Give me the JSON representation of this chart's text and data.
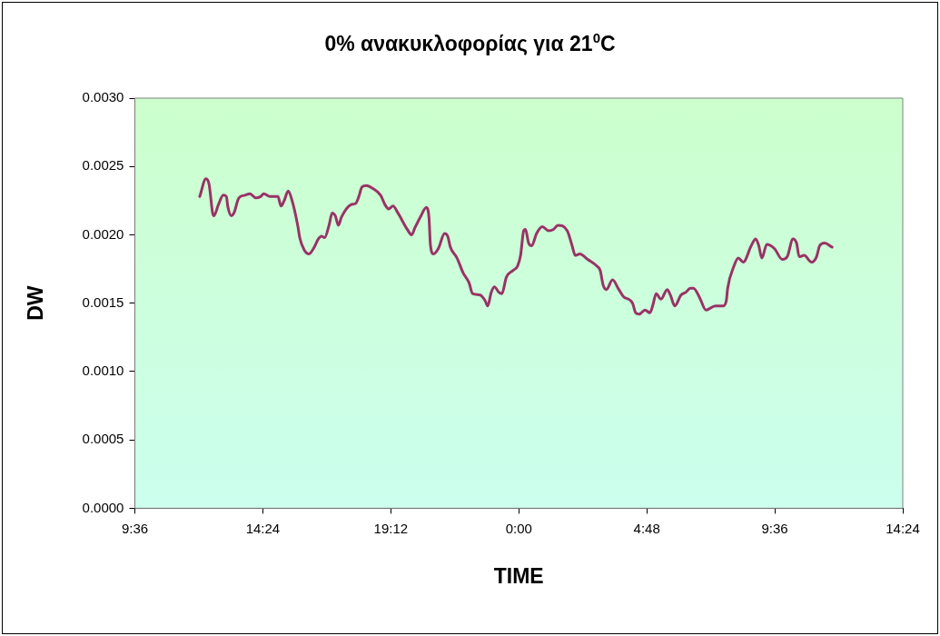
{
  "chart_data": {
    "type": "line",
    "title": "0% ανακυκλοφορίας για 21$^{0}$C",
    "xlabel": "TIME",
    "ylabel": "DW",
    "x": [
      "2000-01-01T12:02",
      "2000-01-01T12:16",
      "2000-01-01T12:23",
      "2000-01-01T12:31",
      "2000-01-01T12:34",
      "2000-01-01T12:44",
      "2000-01-01T12:55",
      "2000-01-01T13:02",
      "2000-01-01T13:05",
      "2000-01-01T13:13",
      "2000-01-01T13:19",
      "2000-01-01T13:30",
      "2000-01-01T13:44",
      "2000-01-01T13:55",
      "2000-01-01T14:08",
      "2000-01-01T14:19",
      "2000-01-01T14:26",
      "2000-01-01T14:40",
      "2000-01-01T14:58",
      "2000-01-01T15:05",
      "2000-01-01T15:12",
      "2000-01-01T15:21",
      "2000-01-01T15:29",
      "2000-01-01T15:43",
      "2000-01-01T15:47",
      "2000-01-01T15:57",
      "2000-01-01T16:08",
      "2000-01-01T16:18",
      "2000-01-01T16:29",
      "2000-01-01T16:36",
      "2000-01-01T16:43",
      "2000-01-01T16:53",
      "2000-01-01T17:00",
      "2000-01-01T17:07",
      "2000-01-01T17:14",
      "2000-01-01T17:21",
      "2000-01-01T17:42",
      "2000-01-01T17:53",
      "2000-01-01T18:00",
      "2000-01-01T18:07",
      "2000-01-01T18:17",
      "2000-01-01T18:31",
      "2000-01-01T18:49",
      "2000-01-01T18:59",
      "2000-01-01T19:07",
      "2000-01-01T19:17",
      "2000-01-01T19:28",
      "2000-01-01T19:49",
      "2000-01-01T19:59",
      "2000-01-01T20:06",
      "2000-01-01T20:20",
      "2000-01-01T20:32",
      "2000-01-01T20:38",
      "2000-01-01T20:41",
      "2000-01-01T20:48",
      "2000-01-01T20:59",
      "2000-01-01T21:13",
      "2000-01-01T21:20",
      "2000-01-01T21:26",
      "2000-01-01T21:41",
      "2000-01-01T21:55",
      "2000-01-01T22:08",
      "2000-01-01T22:16",
      "2000-01-01T22:33",
      "2000-01-01T22:44",
      "2000-01-01T22:50",
      "2000-01-01T22:58",
      "2000-01-01T23:05",
      "2000-01-01T23:15",
      "2000-01-01T23:22",
      "2000-01-01T23:32",
      "2000-01-01T23:47",
      "2000-01-01T23:57",
      "2000-01-02T00:04",
      "2000-01-02T00:11",
      "2000-01-02T00:15",
      "2000-01-02T00:22",
      "2000-01-02T00:29",
      "2000-01-02T00:40",
      "2000-01-02T00:53",
      "2000-01-02T01:07",
      "2000-01-02T01:18",
      "2000-01-02T01:28",
      "2000-01-02T01:49",
      "2000-01-02T02:00",
      "2000-01-02T02:07",
      "2000-01-02T02:17",
      "2000-01-02T02:35",
      "2000-01-02T02:56",
      "2000-01-02T03:03",
      "2000-01-02T03:10",
      "2000-01-02T03:17",
      "2000-01-02T03:31",
      "2000-01-02T03:45",
      "2000-01-02T03:55",
      "2000-01-02T04:16",
      "2000-01-02T04:23",
      "2000-01-02T04:31",
      "2000-01-02T04:44",
      "2000-01-02T04:55",
      "2000-01-02T05:02",
      "2000-01-02T05:09",
      "2000-01-02T05:20",
      "2000-01-02T05:34",
      "2000-01-02T05:41",
      "2000-01-02T05:51",
      "2000-01-02T06:05",
      "2000-01-02T06:16",
      "2000-01-02T06:26",
      "2000-01-02T06:33",
      "2000-01-02T06:47",
      "2000-01-02T07:01",
      "2000-01-02T07:22",
      "2000-01-02T07:40",
      "2000-01-02T07:47",
      "2000-01-02T07:50",
      "2000-01-02T08:04",
      "2000-01-02T08:14",
      "2000-01-02T08:25",
      "2000-01-02T08:43",
      "2000-01-02T08:53",
      "2000-01-02T09:00",
      "2000-01-02T09:07",
      "2000-01-02T09:18",
      "2000-01-02T09:35",
      "2000-01-02T09:53",
      "2000-01-02T10:04",
      "2000-01-02T10:17",
      "2000-01-02T10:25",
      "2000-01-02T10:31",
      "2000-01-02T10:42",
      "2000-01-02T10:59",
      "2000-01-02T11:10",
      "2000-01-02T11:17",
      "2000-01-02T11:28",
      "2000-01-02T11:45"
    ],
    "series": [
      {
        "color": "#993366",
        "values": [
          0.00228,
          0.00241,
          0.00237,
          0.00216,
          0.00214,
          0.00222,
          0.00229,
          0.00228,
          0.00221,
          0.00214,
          0.00216,
          0.00227,
          0.00229,
          0.0023,
          0.00227,
          0.00228,
          0.0023,
          0.00228,
          0.00228,
          0.00221,
          0.00225,
          0.00232,
          0.00226,
          0.00206,
          0.00198,
          0.00189,
          0.00186,
          0.0019,
          0.00197,
          0.00199,
          0.00198,
          0.00207,
          0.00216,
          0.00214,
          0.00207,
          0.00213,
          0.00222,
          0.00223,
          0.00228,
          0.00235,
          0.00236,
          0.00234,
          0.00229,
          0.00222,
          0.00219,
          0.00221,
          0.00216,
          0.00204,
          0.002,
          0.00205,
          0.00214,
          0.0022,
          0.00212,
          0.00193,
          0.00186,
          0.0019,
          0.00201,
          0.00199,
          0.00191,
          0.00183,
          0.00172,
          0.00165,
          0.00157,
          0.00156,
          0.00152,
          0.00148,
          0.00158,
          0.00162,
          0.00158,
          0.00157,
          0.00169,
          0.00174,
          0.00177,
          0.00185,
          0.00203,
          0.00204,
          0.00194,
          0.00192,
          0.00201,
          0.00206,
          0.00203,
          0.00204,
          0.00207,
          0.00203,
          0.00192,
          0.00185,
          0.00186,
          0.00182,
          0.00177,
          0.00174,
          0.00163,
          0.0016,
          0.00167,
          0.0016,
          0.00155,
          0.0015,
          0.00143,
          0.00142,
          0.00145,
          0.00143,
          0.00149,
          0.00157,
          0.00153,
          0.0016,
          0.00156,
          0.00148,
          0.00156,
          0.00158,
          0.00161,
          0.00161,
          0.00154,
          0.00145,
          0.00148,
          0.00148,
          0.00152,
          0.00161,
          0.00177,
          0.00183,
          0.0018,
          0.00192,
          0.00197,
          0.00192,
          0.00183,
          0.00193,
          0.0019,
          0.00182,
          0.00184,
          0.00197,
          0.00194,
          0.00184,
          0.00185,
          0.0018,
          0.00184,
          0.00192,
          0.00194,
          0.00191
        ]
      }
    ],
    "xlim": [
      "2000-01-01T09:36",
      "2000-01-02T14:24"
    ],
    "xticks": [
      {
        "value": "2000-01-01T09:36",
        "label": "9:36"
      },
      {
        "value": "2000-01-01T14:24",
        "label": "14:24"
      },
      {
        "value": "2000-01-01T19:12",
        "label": "19:12"
      },
      {
        "value": "2000-01-02T00:00",
        "label": "0:00"
      },
      {
        "value": "2000-01-02T04:48",
        "label": "4:48"
      },
      {
        "value": "2000-01-02T09:36",
        "label": "9:36"
      },
      {
        "value": "2000-01-02T14:24",
        "label": "14:24"
      }
    ],
    "ylim": [
      0,
      0.003
    ],
    "yticks": [
      {
        "value": 0,
        "label": "0.0000"
      },
      {
        "value": 0.0005,
        "label": "0.0005"
      },
      {
        "value": 0.001,
        "label": "0.0010"
      },
      {
        "value": 0.0015,
        "label": "0.0015"
      },
      {
        "value": 0.002,
        "label": "0.0020"
      },
      {
        "value": 0.0025,
        "label": "0.0025"
      },
      {
        "value": 0.003,
        "label": "0.0030"
      }
    ],
    "grid": false,
    "legend": false,
    "marker": "none",
    "line_style": "solid"
  }
}
